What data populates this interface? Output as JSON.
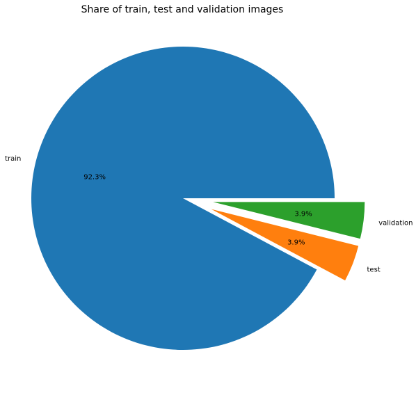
{
  "chart_data": {
    "type": "pie",
    "title": "Share of train, test and validation images",
    "labels": [
      "train",
      "test",
      "validation"
    ],
    "values": [
      92.3,
      3.9,
      3.9
    ],
    "percent_labels": [
      "92.3%",
      "3.9%",
      "3.9%"
    ],
    "colors": [
      "#1f77b4",
      "#ff7f0e",
      "#2ca02c"
    ],
    "explode": [
      0,
      0.2,
      0.2
    ],
    "start_angle_deg": 0,
    "direction": "counterclockwise",
    "legend": "none"
  }
}
